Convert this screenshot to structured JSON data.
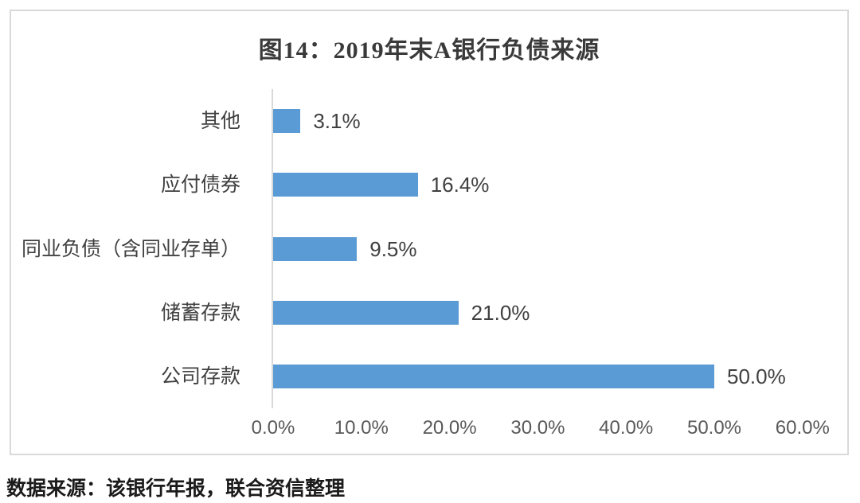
{
  "chart": {
    "title": "图14：2019年末A银行负债来源",
    "source_note": "数据来源：该银行年报，联合资信整理"
  },
  "chart_data": {
    "type": "bar",
    "orientation": "horizontal",
    "title": "图14：2019年末A银行负债来源",
    "categories": [
      "其他",
      "应付债券",
      "同业负债（含同业存单）",
      "储蓄存款",
      "公司存款"
    ],
    "values": [
      3.1,
      16.4,
      9.5,
      21.0,
      50.0
    ],
    "data_labels": [
      "3.1%",
      "16.4%",
      "9.5%",
      "21.0%",
      "50.0%"
    ],
    "xlabel": "",
    "ylabel": "",
    "xlim": [
      0,
      60
    ],
    "x_ticks": [
      "0.0%",
      "10.0%",
      "20.0%",
      "30.0%",
      "40.0%",
      "50.0%",
      "60.0%"
    ],
    "x_tick_values": [
      0,
      10,
      20,
      30,
      40,
      50,
      60
    ],
    "grid": false,
    "legend": false,
    "bar_color": "#5B9BD5",
    "axis_color": "#D9D9D9",
    "label_color": "#404040",
    "tick_color": "#595959"
  }
}
